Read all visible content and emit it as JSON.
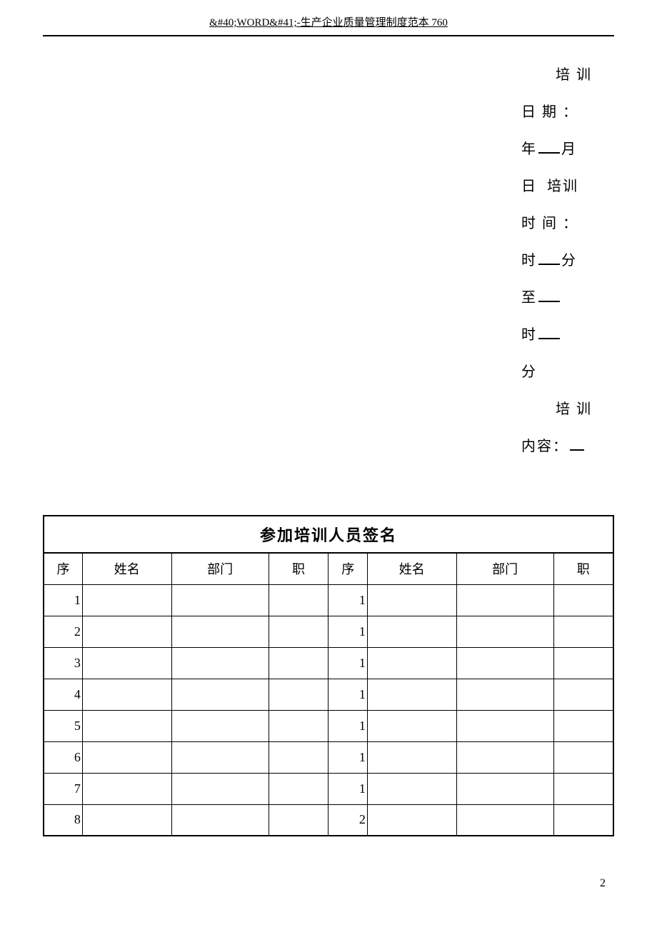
{
  "header": {
    "title": "&#40;WORD&#41;-生产企业质量管理制度范本 760"
  },
  "info": {
    "line1": "培 训",
    "line2_prefix": "日 期 ：",
    "line3_year": "年",
    "line3_month": "月",
    "line4_day": "日",
    "line4_training": "培训",
    "line5": "时 间 ：",
    "line6_hour": "时",
    "line6_min": "分",
    "line7_to": "至",
    "line8_hour": "时",
    "line9_min": "分",
    "line10": "培 训",
    "line11_prefix": "内容：",
    "u_empty": ""
  },
  "table": {
    "title": "参加培训人员签名",
    "headers": {
      "seq": "序",
      "name": "姓名",
      "dept": "部门",
      "pos": "职"
    },
    "rows": [
      {
        "left_seq": "1",
        "right_seq": "1"
      },
      {
        "left_seq": "2",
        "right_seq": "1"
      },
      {
        "left_seq": "3",
        "right_seq": "1"
      },
      {
        "left_seq": "4",
        "right_seq": "1"
      },
      {
        "left_seq": "5",
        "right_seq": "1"
      },
      {
        "left_seq": "6",
        "right_seq": "1"
      },
      {
        "left_seq": "7",
        "right_seq": "1"
      },
      {
        "left_seq": "8",
        "right_seq": "2"
      }
    ]
  },
  "page_number": "2",
  "styles": {
    "background_color": "#ffffff",
    "text_color": "#000000",
    "border_color": "#000000",
    "font_family": "SimSun",
    "body_font_size": 20,
    "table_title_font_size": 22,
    "table_cell_font_size": 18
  }
}
